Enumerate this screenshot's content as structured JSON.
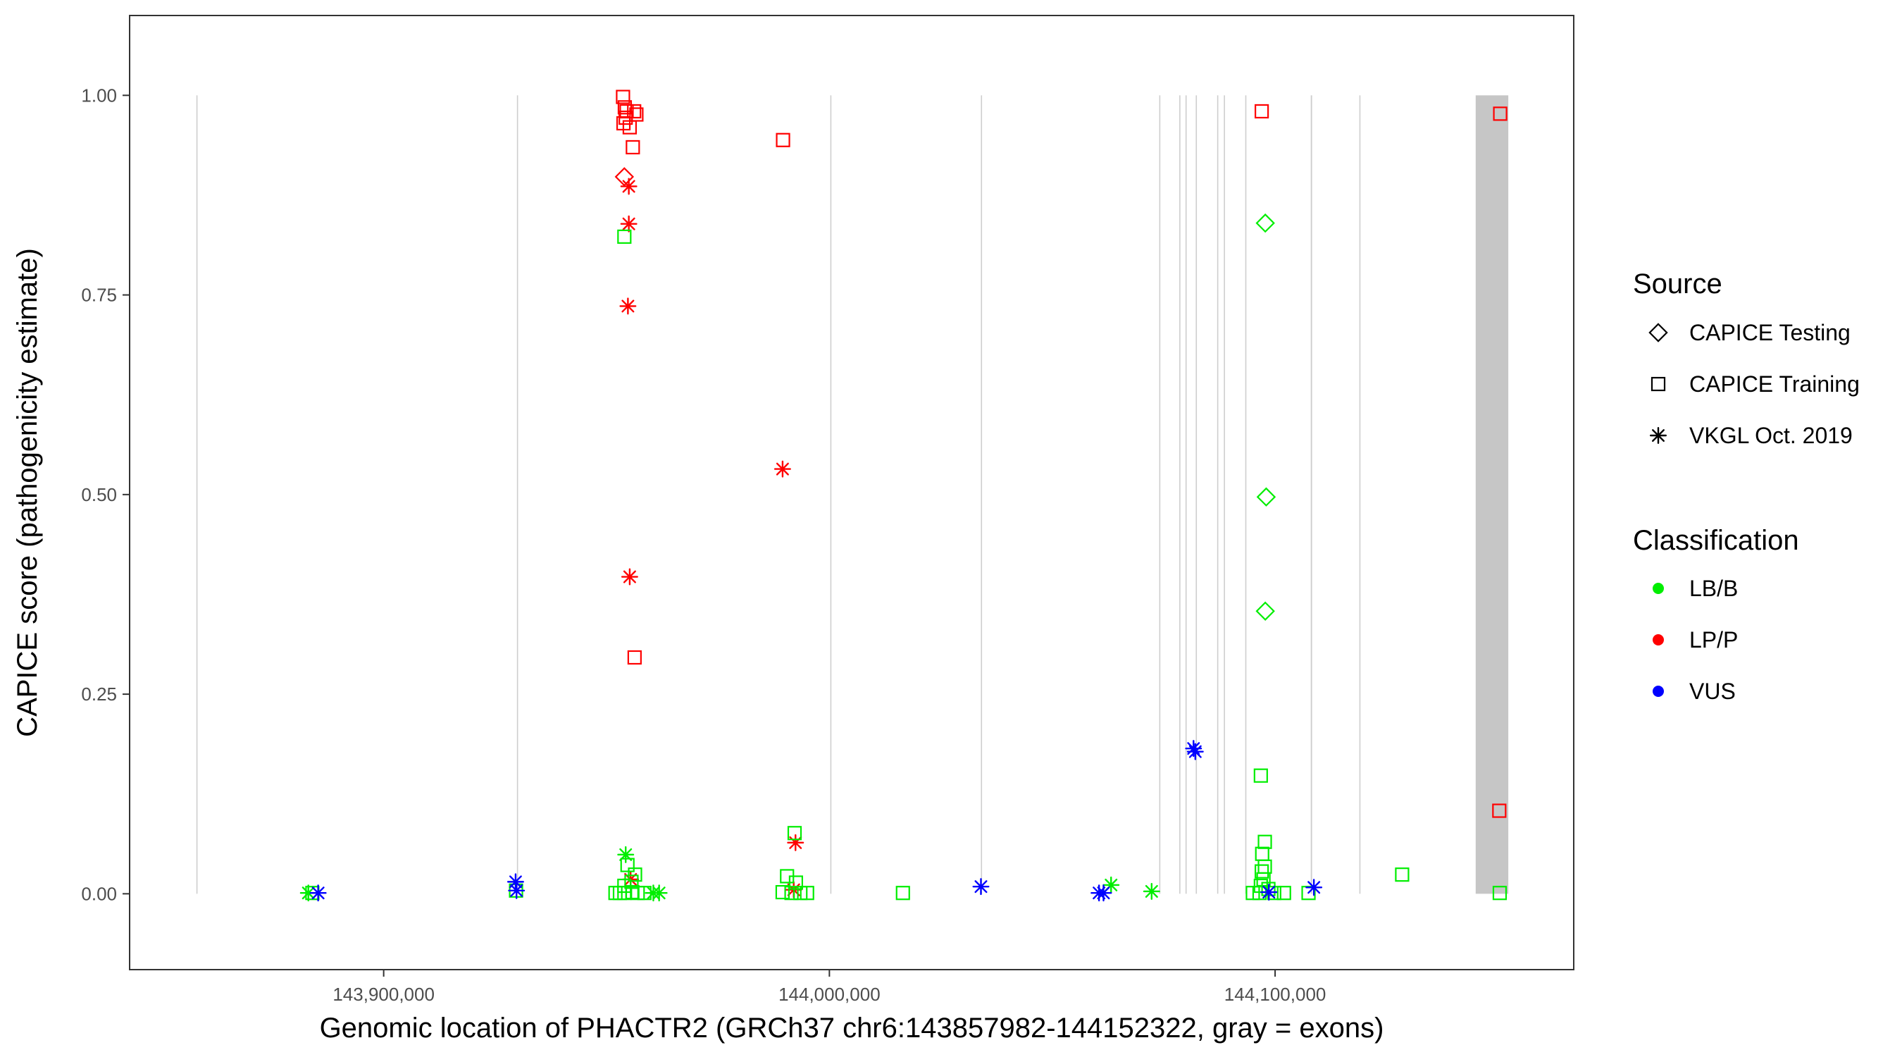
{
  "chart_data": {
    "type": "scatter",
    "xlabel": "Genomic location of PHACTR2 (GRCh37 chr6:143857982-144152322, gray = exons)",
    "ylabel": "CAPICE score (pathogenicity estimate)",
    "xlim": [
      143843000,
      144167000
    ],
    "ylim": [
      -0.095,
      1.1
    ],
    "x_ticks": [
      143900000,
      144000000,
      144100000
    ],
    "x_tick_labels": [
      "143,900,000",
      "144,000,000",
      "144,100,000"
    ],
    "y_ticks": [
      0,
      0.25,
      0.5,
      0.75,
      1.0
    ],
    "y_tick_labels": [
      "0.00",
      "0.25",
      "0.50",
      "0.75",
      "1.00"
    ],
    "grid": false,
    "exons": [
      {
        "start": 143857982,
        "end": 143858150
      },
      {
        "start": 143929900,
        "end": 143930050
      },
      {
        "start": 144000200,
        "end": 144000350
      },
      {
        "start": 144034000,
        "end": 144034150
      },
      {
        "start": 144074000,
        "end": 144074150
      },
      {
        "start": 144078500,
        "end": 144078650
      },
      {
        "start": 144079900,
        "end": 144080050
      },
      {
        "start": 144082200,
        "end": 144082350
      },
      {
        "start": 144087000,
        "end": 144087150
      },
      {
        "start": 144088500,
        "end": 144088700
      },
      {
        "start": 144093300,
        "end": 144093500
      },
      {
        "start": 144108000,
        "end": 144108300
      },
      {
        "start": 144118900,
        "end": 144119050
      },
      {
        "start": 144145000,
        "end": 144152322
      }
    ],
    "legend": {
      "position": "right",
      "source_title": "Source",
      "shapes": [
        {
          "label": "CAPICE Testing",
          "shape": "diamond"
        },
        {
          "label": "CAPICE Training",
          "shape": "square"
        },
        {
          "label": "VKGL Oct. 2019",
          "shape": "asterisk"
        }
      ],
      "class_title": "Classification",
      "classes": [
        {
          "label": "LB/B",
          "color": "#00ee00"
        },
        {
          "label": "LP/P",
          "color": "#ff0000"
        },
        {
          "label": "VUS",
          "color": "#0000ff"
        }
      ]
    },
    "series": [
      {
        "name": "LP/P",
        "color": "#ff0000",
        "points": [
          {
            "x": 143953700,
            "y": 0.998,
            "s": "square"
          },
          {
            "x": 143954100,
            "y": 0.985,
            "s": "square"
          },
          {
            "x": 143954500,
            "y": 0.98,
            "s": "square"
          },
          {
            "x": 143954300,
            "y": 0.972,
            "s": "square"
          },
          {
            "x": 143953800,
            "y": 0.965,
            "s": "square"
          },
          {
            "x": 143955200,
            "y": 0.96,
            "s": "square"
          },
          {
            "x": 143956200,
            "y": 0.98,
            "s": "square"
          },
          {
            "x": 143956700,
            "y": 0.976,
            "s": "square"
          },
          {
            "x": 143955900,
            "y": 0.935,
            "s": "square"
          },
          {
            "x": 143954000,
            "y": 0.898,
            "s": "diamond"
          },
          {
            "x": 143955000,
            "y": 0.886,
            "s": "asterisk"
          },
          {
            "x": 143955000,
            "y": 0.839,
            "s": "asterisk"
          },
          {
            "x": 143954800,
            "y": 0.736,
            "s": "asterisk"
          },
          {
            "x": 143955200,
            "y": 0.397,
            "s": "asterisk"
          },
          {
            "x": 143956300,
            "y": 0.296,
            "s": "square"
          },
          {
            "x": 143955400,
            "y": 0.018,
            "s": "asterisk"
          },
          {
            "x": 143989600,
            "y": 0.944,
            "s": "square"
          },
          {
            "x": 143989500,
            "y": 0.532,
            "s": "asterisk"
          },
          {
            "x": 143992400,
            "y": 0.064,
            "s": "asterisk"
          },
          {
            "x": 143992000,
            "y": 0.005,
            "s": "asterisk"
          },
          {
            "x": 144097000,
            "y": 0.98,
            "s": "square"
          },
          {
            "x": 144150500,
            "y": 0.977,
            "s": "square"
          },
          {
            "x": 144150300,
            "y": 0.104,
            "s": "square"
          }
        ]
      },
      {
        "name": "LB/B",
        "color": "#00ee00",
        "points": [
          {
            "x": 143954000,
            "y": 0.823,
            "s": "square"
          },
          {
            "x": 143954300,
            "y": 0.049,
            "s": "asterisk"
          },
          {
            "x": 143954700,
            "y": 0.036,
            "s": "square"
          },
          {
            "x": 143956400,
            "y": 0.024,
            "s": "square"
          },
          {
            "x": 143955600,
            "y": 0.015,
            "s": "square"
          },
          {
            "x": 143954000,
            "y": 0.01,
            "s": "square"
          },
          {
            "x": 143952000,
            "y": 0.001,
            "s": "square"
          },
          {
            "x": 143953000,
            "y": 0.001,
            "s": "square"
          },
          {
            "x": 143954000,
            "y": 0.001,
            "s": "square"
          },
          {
            "x": 143955800,
            "y": 0.002,
            "s": "square"
          },
          {
            "x": 143957000,
            "y": 0.001,
            "s": "square"
          },
          {
            "x": 143958500,
            "y": 0.001,
            "s": "square"
          },
          {
            "x": 143960500,
            "y": 0.001,
            "s": "asterisk"
          },
          {
            "x": 143961800,
            "y": 0.001,
            "s": "asterisk"
          },
          {
            "x": 143883100,
            "y": 0.001,
            "s": "asterisk"
          },
          {
            "x": 143884000,
            "y": 0.001,
            "s": "square"
          },
          {
            "x": 143929700,
            "y": 0.004,
            "s": "square"
          },
          {
            "x": 143992200,
            "y": 0.076,
            "s": "square"
          },
          {
            "x": 143990500,
            "y": 0.022,
            "s": "square"
          },
          {
            "x": 143992500,
            "y": 0.014,
            "s": "square"
          },
          {
            "x": 143989500,
            "y": 0.002,
            "s": "square"
          },
          {
            "x": 143991500,
            "y": 0.001,
            "s": "square"
          },
          {
            "x": 143993500,
            "y": 0.001,
            "s": "square"
          },
          {
            "x": 143995000,
            "y": 0.001,
            "s": "square"
          },
          {
            "x": 144016500,
            "y": 0.001,
            "s": "square"
          },
          {
            "x": 144063200,
            "y": 0.011,
            "s": "asterisk"
          },
          {
            "x": 144072300,
            "y": 0.003,
            "s": "asterisk"
          },
          {
            "x": 144097800,
            "y": 0.84,
            "s": "diamond"
          },
          {
            "x": 144098000,
            "y": 0.497,
            "s": "diamond"
          },
          {
            "x": 144097800,
            "y": 0.354,
            "s": "diamond"
          },
          {
            "x": 144096800,
            "y": 0.148,
            "s": "square"
          },
          {
            "x": 144097700,
            "y": 0.065,
            "s": "square"
          },
          {
            "x": 144097100,
            "y": 0.05,
            "s": "square"
          },
          {
            "x": 144097700,
            "y": 0.034,
            "s": "square"
          },
          {
            "x": 144097000,
            "y": 0.028,
            "s": "square"
          },
          {
            "x": 144097400,
            "y": 0.018,
            "s": "square"
          },
          {
            "x": 144096800,
            "y": 0.01,
            "s": "square"
          },
          {
            "x": 144098500,
            "y": 0.006,
            "s": "square"
          },
          {
            "x": 144095000,
            "y": 0.001,
            "s": "square"
          },
          {
            "x": 144096500,
            "y": 0.001,
            "s": "square"
          },
          {
            "x": 144099800,
            "y": 0.001,
            "s": "square"
          },
          {
            "x": 144102000,
            "y": 0.001,
            "s": "square"
          },
          {
            "x": 144107500,
            "y": 0.001,
            "s": "square"
          },
          {
            "x": 144128500,
            "y": 0.024,
            "s": "square"
          },
          {
            "x": 144150400,
            "y": 0.001,
            "s": "square"
          }
        ]
      },
      {
        "name": "VUS",
        "color": "#0000ff",
        "points": [
          {
            "x": 143885300,
            "y": 0.001,
            "s": "asterisk"
          },
          {
            "x": 143929600,
            "y": 0.015,
            "s": "asterisk"
          },
          {
            "x": 143929800,
            "y": 0.004,
            "s": "asterisk"
          },
          {
            "x": 144034000,
            "y": 0.009,
            "s": "asterisk"
          },
          {
            "x": 144060500,
            "y": 0.001,
            "s": "asterisk"
          },
          {
            "x": 144061500,
            "y": 0.001,
            "s": "asterisk"
          },
          {
            "x": 144081700,
            "y": 0.182,
            "s": "asterisk"
          },
          {
            "x": 144082100,
            "y": 0.178,
            "s": "asterisk"
          },
          {
            "x": 144098600,
            "y": 0.002,
            "s": "asterisk"
          },
          {
            "x": 144108700,
            "y": 0.008,
            "s": "asterisk"
          }
        ]
      }
    ]
  }
}
